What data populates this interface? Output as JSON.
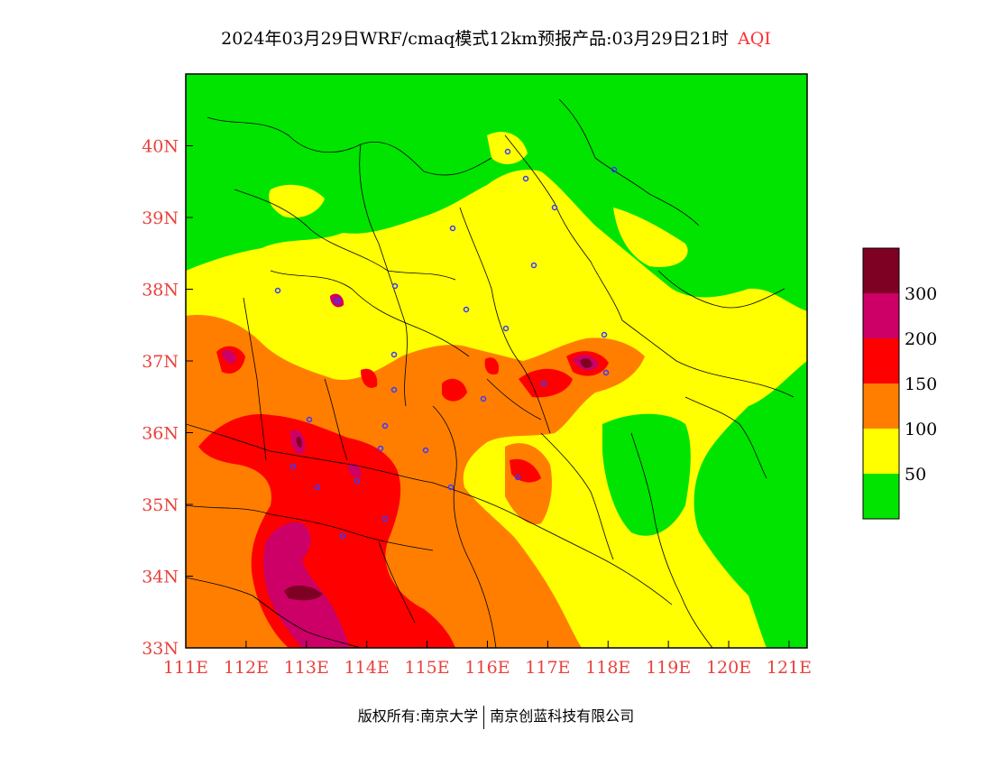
{
  "title": {
    "main": "2024年03月29日WRF/cmaq模式12km预报产品:03月29日21时",
    "variable": "AQI"
  },
  "map": {
    "lon_ticks": [
      "111E",
      "112E",
      "113E",
      "114E",
      "115E",
      "116E",
      "117E",
      "118E",
      "119E",
      "120E",
      "121E"
    ],
    "lat_ticks": [
      "33N",
      "34N",
      "35N",
      "36N",
      "37N",
      "38N",
      "39N",
      "40N"
    ],
    "lon_range": [
      111,
      121.3
    ],
    "lat_range": [
      33,
      41
    ]
  },
  "legend": {
    "labels": [
      "300",
      "200",
      "150",
      "100",
      "50"
    ],
    "colors": [
      "#ffffff",
      "#00e400",
      "#ffff00",
      "#ff7e00",
      "#ff0000",
      "#cc0066",
      "#7e0023"
    ]
  },
  "footer": {
    "left": "版权所有:南京大学",
    "right": "南京创蓝科技有限公司"
  }
}
